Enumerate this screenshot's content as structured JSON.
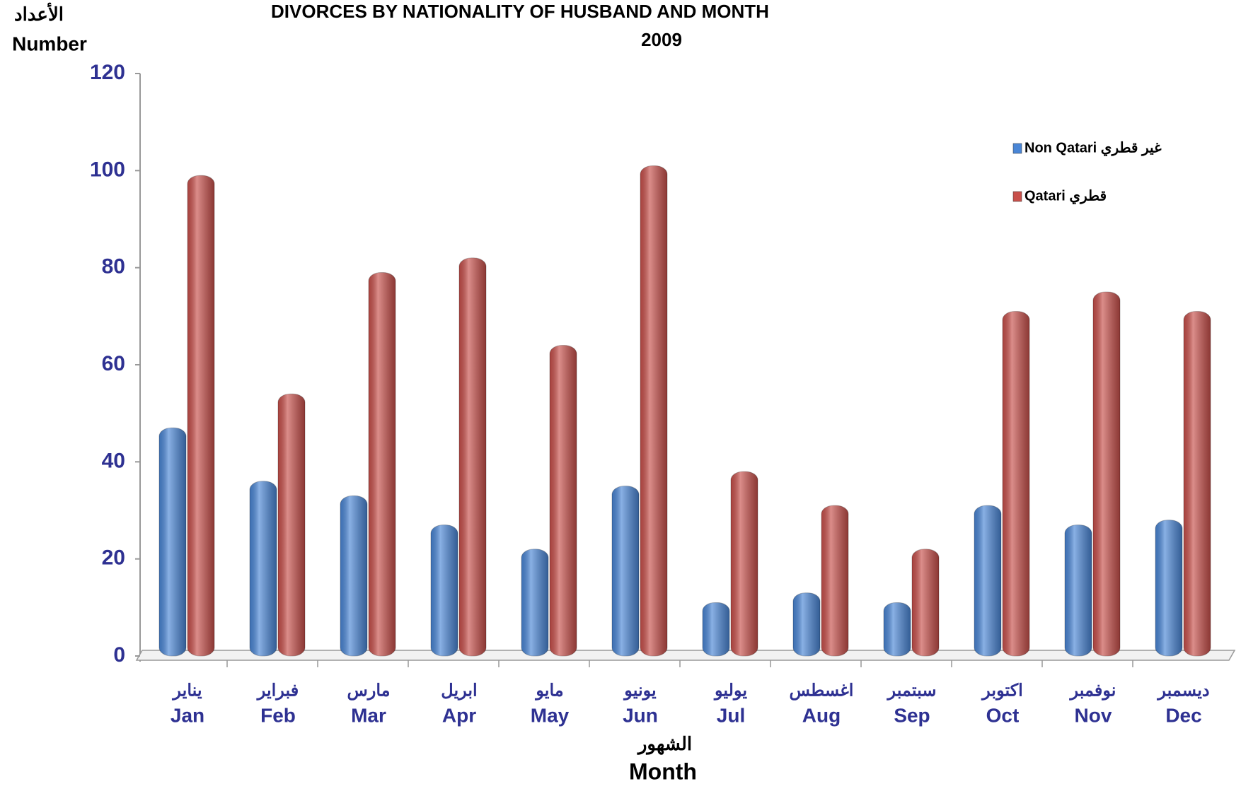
{
  "chart_data": {
    "type": "bar",
    "title": "DIVORCES BY NATIONALITY OF HUSBAND AND MONTH",
    "subtitle": "2009",
    "y_label_ar": "الأعداد",
    "y_label": "Number",
    "x_label_ar": "الشهور",
    "x_label": "Month",
    "categories": [
      "Jan",
      "Feb",
      "Mar",
      "Apr",
      "May",
      "Jun",
      "Jul",
      "Aug",
      "Sep",
      "Oct",
      "Nov",
      "Dec"
    ],
    "categories_ar": [
      "يناير",
      "فبراير",
      "مارس",
      "ابريل",
      "مايو",
      "يونيو",
      "يوليو",
      "اغسطس",
      "سبتمبر",
      "اكتوبر",
      "نوفمبر",
      "ديسمبر"
    ],
    "series": [
      {
        "name": "Non Qatari غير قطري",
        "color": "#4a86d6",
        "values": [
          47,
          36,
          33,
          27,
          22,
          35,
          11,
          13,
          11,
          31,
          27,
          28
        ]
      },
      {
        "name": "Qatari  قطري",
        "color": "#c8504b",
        "values": [
          99,
          54,
          79,
          82,
          64,
          101,
          38,
          31,
          22,
          71,
          75,
          71
        ]
      }
    ],
    "ylim": [
      0,
      120
    ],
    "yticks": [
      0,
      20,
      40,
      60,
      80,
      100,
      120
    ],
    "legend": "upper right"
  }
}
